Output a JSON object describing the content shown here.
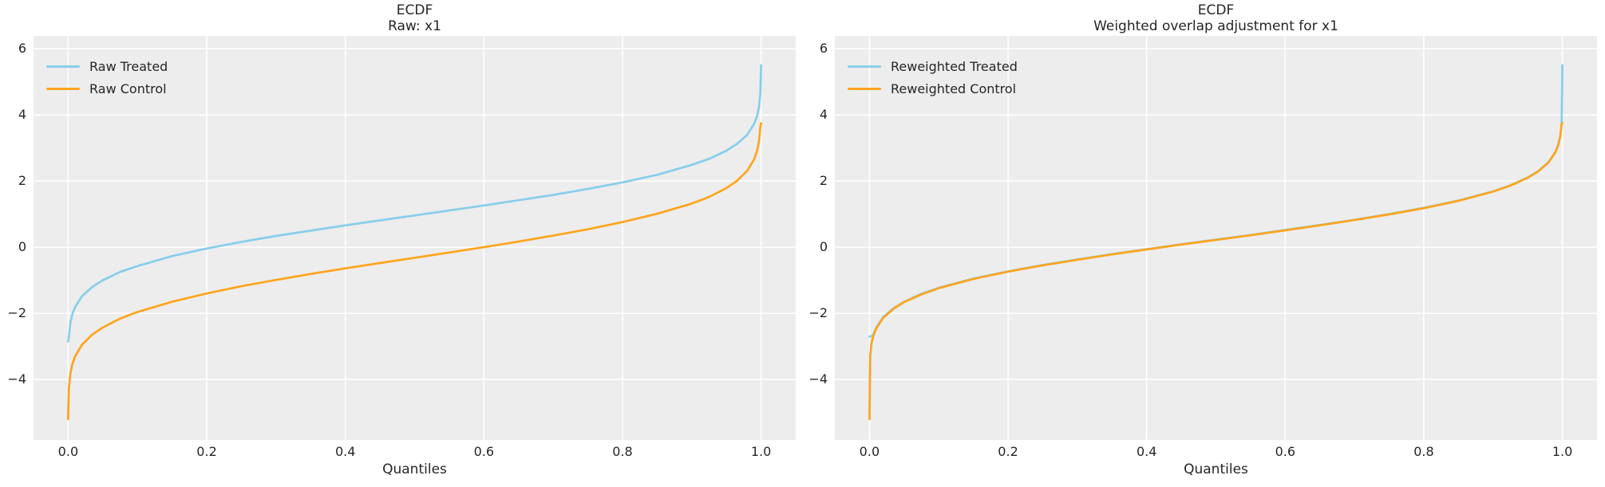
{
  "figure": {
    "background": "#FFFFFF",
    "axes_background": "#EDEDED",
    "grid_color": "#FFFFFF",
    "text_color": "#262626",
    "treated_color": "#87CEEB",
    "control_color": "#FFA41C"
  },
  "chart_data": [
    {
      "type": "line",
      "title_lines": [
        "ECDF",
        "Raw: x1"
      ],
      "xlabel": "Quantiles",
      "grid": true,
      "legend_position": "upper-left",
      "xlim": [
        -0.05,
        1.05
      ],
      "ylim": [
        -5.83,
        6.39
      ],
      "x_tick_values": [
        0.0,
        0.2,
        0.4,
        0.6,
        0.8,
        1.0
      ],
      "x_tick_labels": [
        "0.0",
        "0.2",
        "0.4",
        "0.6",
        "0.8",
        "1.0"
      ],
      "y_tick_values": [
        6,
        4,
        2,
        0,
        -2,
        -4
      ],
      "y_tick_labels": [
        "6",
        "4",
        "2",
        "0",
        "−2",
        "−4"
      ],
      "series": [
        {
          "name": "Raw Treated",
          "color": "#87CEEB",
          "q": [
            0,
            0.001,
            0.003,
            0.006,
            0.01,
            0.02,
            0.035,
            0.05,
            0.075,
            0.1,
            0.15,
            0.2,
            0.25,
            0.3,
            0.35,
            0.4,
            0.45,
            0.5,
            0.55,
            0.6,
            0.65,
            0.7,
            0.75,
            0.8,
            0.85,
            0.9,
            0.925,
            0.95,
            0.965,
            0.98,
            0.99,
            0.994,
            0.997,
            0.999,
            1
          ],
          "v": [
            -2.85,
            -2.72,
            -2.31,
            -2.03,
            -1.81,
            -1.48,
            -1.2,
            -1.0,
            -0.75,
            -0.57,
            -0.27,
            -0.04,
            0.16,
            0.34,
            0.5,
            0.66,
            0.81,
            0.96,
            1.11,
            1.26,
            1.42,
            1.58,
            1.76,
            1.96,
            2.19,
            2.49,
            2.67,
            2.92,
            3.12,
            3.4,
            3.73,
            3.95,
            4.23,
            4.64,
            5.5
          ]
        },
        {
          "name": "Raw Control",
          "color": "#FFA41C",
          "q": [
            0,
            0.001,
            0.003,
            0.006,
            0.01,
            0.02,
            0.035,
            0.05,
            0.075,
            0.1,
            0.15,
            0.2,
            0.25,
            0.3,
            0.35,
            0.4,
            0.45,
            0.5,
            0.55,
            0.6,
            0.65,
            0.7,
            0.75,
            0.8,
            0.85,
            0.9,
            0.925,
            0.95,
            0.965,
            0.98,
            0.99,
            0.994,
            0.997,
            0.999,
            1
          ],
          "v": [
            -5.2,
            -4.28,
            -3.84,
            -3.54,
            -3.3,
            -2.95,
            -2.64,
            -2.43,
            -2.16,
            -1.96,
            -1.65,
            -1.4,
            -1.18,
            -0.99,
            -0.81,
            -0.64,
            -0.48,
            -0.32,
            -0.16,
            0.0,
            0.17,
            0.35,
            0.54,
            0.76,
            1.01,
            1.32,
            1.52,
            1.79,
            2.0,
            2.31,
            2.66,
            2.9,
            3.2,
            3.64,
            3.75
          ]
        }
      ]
    },
    {
      "type": "line",
      "title_lines": [
        "ECDF",
        "Weighted overlap adjustment for x1"
      ],
      "xlabel": "Quantiles",
      "grid": true,
      "legend_position": "upper-left",
      "xlim": [
        -0.05,
        1.05
      ],
      "ylim": [
        -5.83,
        6.39
      ],
      "x_tick_values": [
        0.0,
        0.2,
        0.4,
        0.6,
        0.8,
        1.0
      ],
      "x_tick_labels": [
        "0.0",
        "0.2",
        "0.4",
        "0.6",
        "0.8",
        "1.0"
      ],
      "y_tick_values": [
        6,
        4,
        2,
        0,
        -2,
        -4
      ],
      "y_tick_labels": [
        "6",
        "4",
        "2",
        "0",
        "−2",
        "−4"
      ],
      "series": [
        {
          "name": "Reweighted Treated",
          "color": "#87CEEB",
          "q": [
            0,
            0.001,
            0.003,
            0.006,
            0.01,
            0.02,
            0.035,
            0.05,
            0.075,
            0.1,
            0.15,
            0.2,
            0.25,
            0.3,
            0.35,
            0.4,
            0.45,
            0.5,
            0.55,
            0.6,
            0.65,
            0.7,
            0.75,
            0.8,
            0.85,
            0.9,
            0.925,
            0.95,
            0.965,
            0.98,
            0.99,
            0.994,
            0.997,
            0.999,
            1
          ],
          "v": [
            -2.7,
            -2.7,
            -2.7,
            -2.63,
            -2.42,
            -2.11,
            -1.84,
            -1.65,
            -1.41,
            -1.23,
            -0.95,
            -0.73,
            -0.54,
            -0.37,
            -0.21,
            -0.06,
            0.09,
            0.23,
            0.37,
            0.52,
            0.67,
            0.83,
            1.0,
            1.19,
            1.41,
            1.69,
            1.87,
            2.11,
            2.3,
            2.57,
            2.88,
            3.09,
            3.36,
            3.75,
            5.5
          ]
        },
        {
          "name": "Reweighted Control",
          "color": "#FFA41C",
          "q": [
            0,
            0.001,
            0.003,
            0.006,
            0.01,
            0.02,
            0.035,
            0.05,
            0.075,
            0.1,
            0.15,
            0.2,
            0.25,
            0.3,
            0.35,
            0.4,
            0.45,
            0.5,
            0.55,
            0.6,
            0.65,
            0.7,
            0.75,
            0.8,
            0.85,
            0.9,
            0.925,
            0.95,
            0.965,
            0.98,
            0.99,
            0.994,
            0.997,
            0.999,
            1
          ],
          "v": [
            -5.2,
            -3.29,
            -2.9,
            -2.66,
            -2.45,
            -2.13,
            -1.86,
            -1.66,
            -1.43,
            -1.24,
            -0.96,
            -0.74,
            -0.55,
            -0.38,
            -0.22,
            -0.07,
            0.08,
            0.22,
            0.36,
            0.51,
            0.66,
            0.82,
            0.99,
            1.18,
            1.4,
            1.68,
            1.86,
            2.1,
            2.29,
            2.56,
            2.87,
            3.08,
            3.35,
            3.73,
            3.75
          ]
        }
      ]
    }
  ]
}
